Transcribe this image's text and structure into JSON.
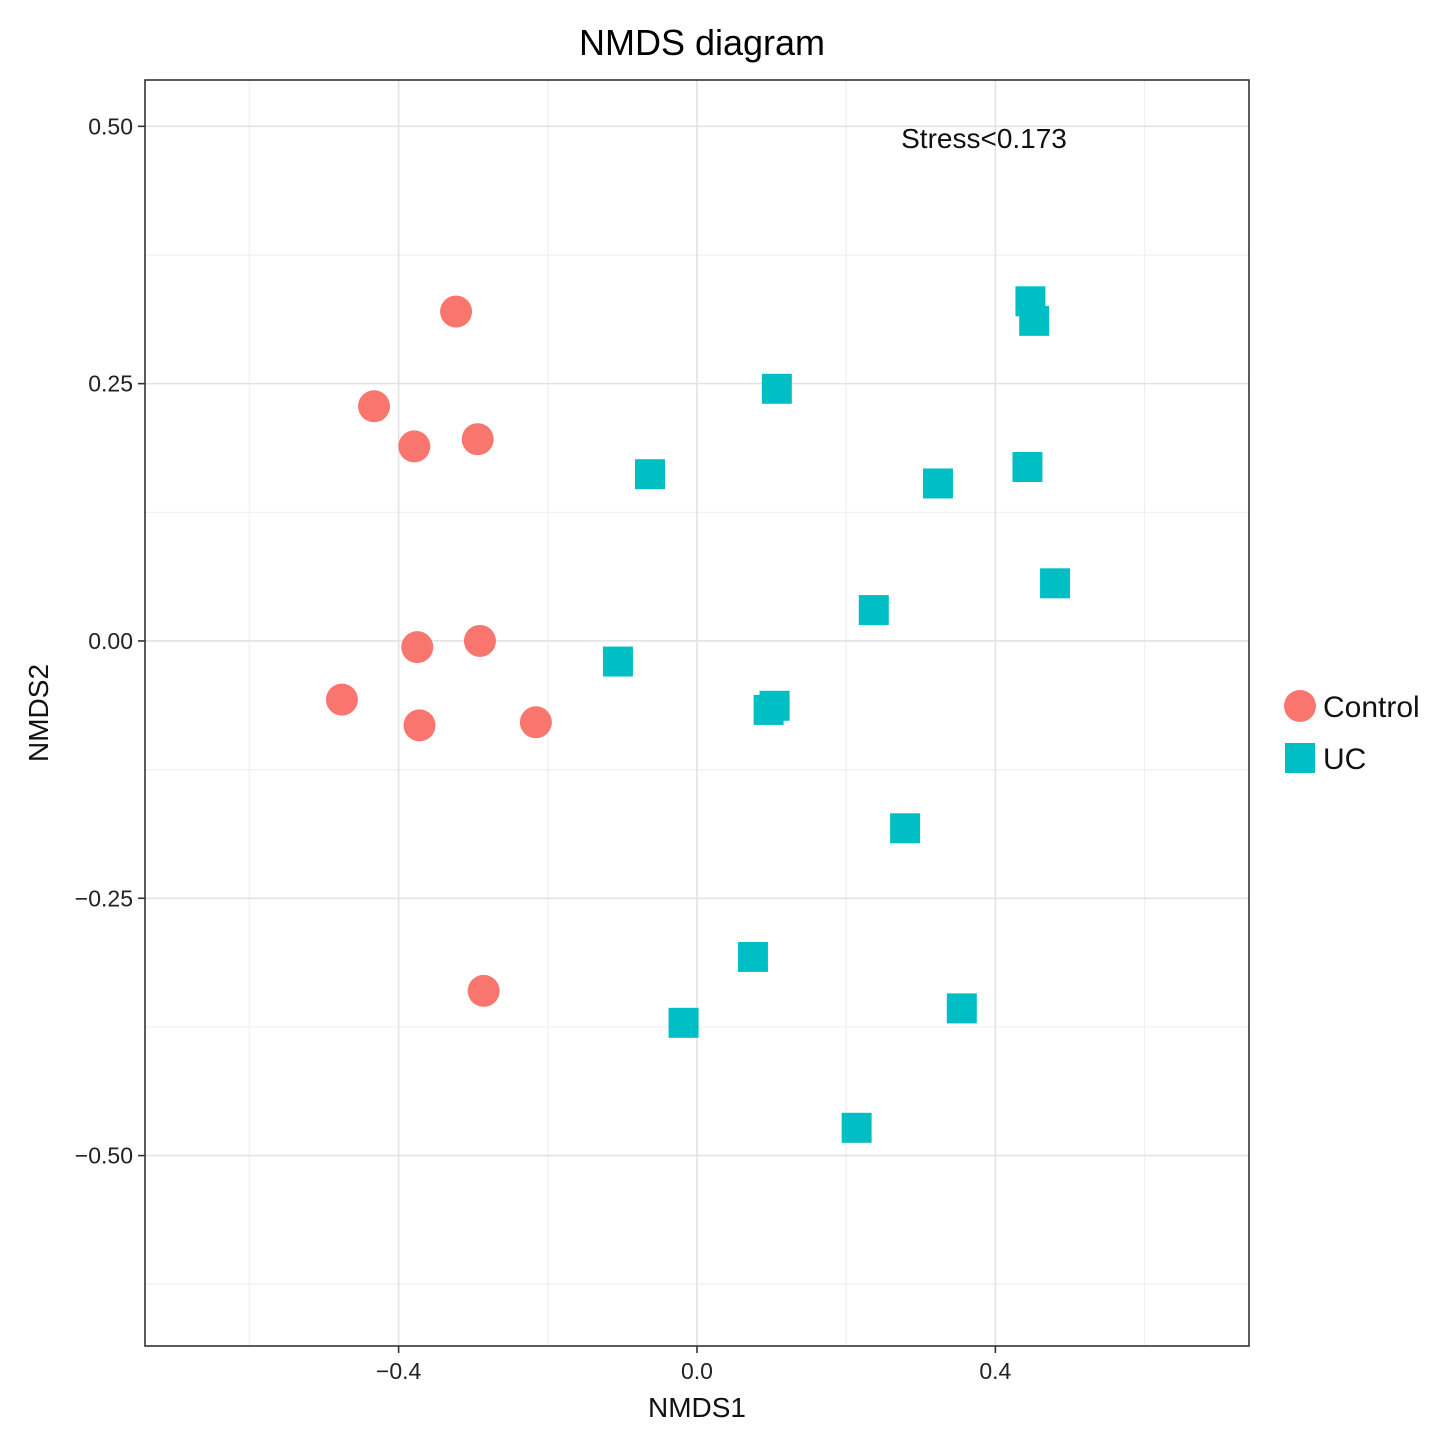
{
  "chart_data": {
    "type": "scatter",
    "title": "NMDS diagram",
    "xlabel": "NMDS1",
    "ylabel": "NMDS2",
    "xlim": [
      -0.74,
      0.74
    ],
    "ylim": [
      -0.685,
      0.545
    ],
    "x_ticks": [
      -0.4,
      0.0,
      0.4
    ],
    "x_tick_labels": [
      "−0.4",
      "0.0",
      "0.4"
    ],
    "x_minor_grid": [
      -0.6,
      -0.2,
      0.2,
      0.6
    ],
    "y_ticks": [
      0.5,
      0.25,
      0.0,
      -0.25,
      -0.5
    ],
    "y_tick_labels": [
      "0.50",
      "0.25",
      "0.00",
      "−0.25",
      "−0.50"
    ],
    "y_minor_grid": [
      0.375,
      0.125,
      -0.125,
      -0.375,
      -0.625
    ],
    "grid": true,
    "legend_position": "right",
    "annotation": "Stress<0.173",
    "series": [
      {
        "name": "Control",
        "marker": "circle",
        "color": "#F8766D",
        "points": [
          {
            "x": -0.323,
            "y": 0.32
          },
          {
            "x": -0.433,
            "y": 0.228
          },
          {
            "x": -0.379,
            "y": 0.189
          },
          {
            "x": -0.294,
            "y": 0.196
          },
          {
            "x": -0.375,
            "y": -0.006
          },
          {
            "x": -0.291,
            "y": 0.0
          },
          {
            "x": -0.476,
            "y": -0.057
          },
          {
            "x": -0.372,
            "y": -0.082
          },
          {
            "x": -0.216,
            "y": -0.079
          },
          {
            "x": -0.286,
            "y": -0.34
          }
        ]
      },
      {
        "name": "UC",
        "marker": "square",
        "color": "#00BFC4",
        "points": [
          {
            "x": 0.447,
            "y": 0.33
          },
          {
            "x": 0.452,
            "y": 0.311
          },
          {
            "x": 0.107,
            "y": 0.245
          },
          {
            "x": -0.063,
            "y": 0.162
          },
          {
            "x": 0.323,
            "y": 0.153
          },
          {
            "x": 0.443,
            "y": 0.169
          },
          {
            "x": 0.48,
            "y": 0.056
          },
          {
            "x": 0.237,
            "y": 0.03
          },
          {
            "x": -0.106,
            "y": -0.02
          },
          {
            "x": 0.104,
            "y": -0.063
          },
          {
            "x": 0.096,
            "y": -0.067
          },
          {
            "x": 0.279,
            "y": -0.182
          },
          {
            "x": 0.075,
            "y": -0.307
          },
          {
            "x": -0.018,
            "y": -0.371
          },
          {
            "x": 0.355,
            "y": -0.357
          },
          {
            "x": 0.214,
            "y": -0.473
          }
        ]
      }
    ]
  }
}
